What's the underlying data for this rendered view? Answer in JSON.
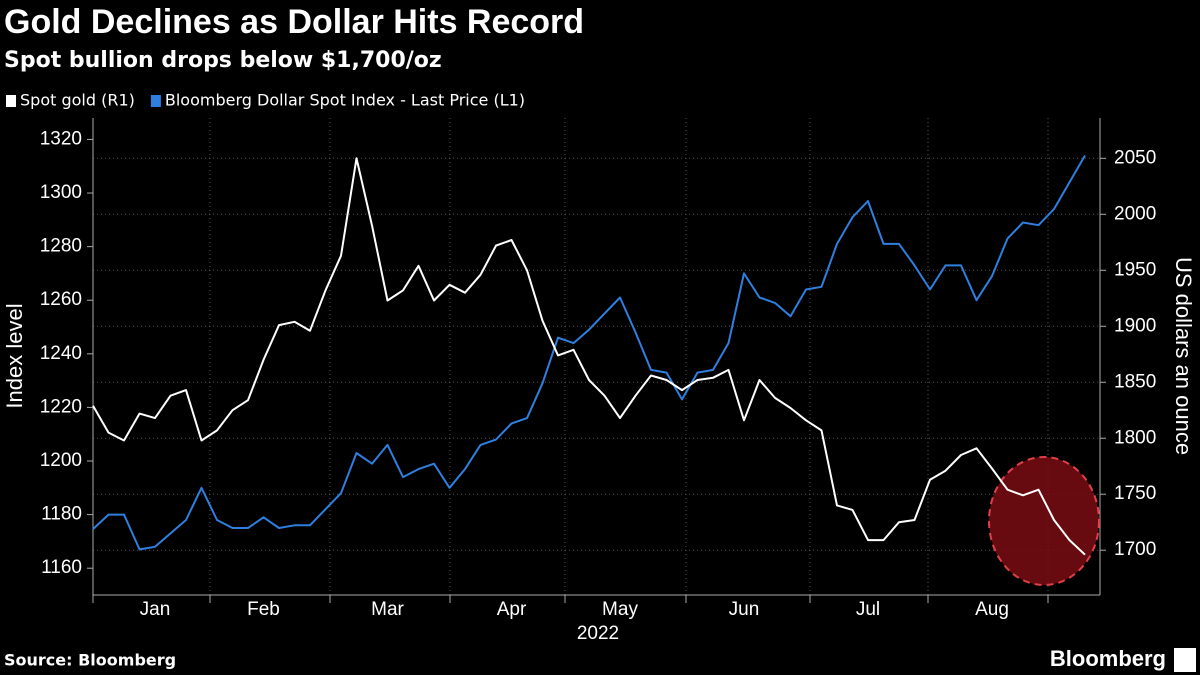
{
  "chart_data": {
    "type": "line",
    "title": "Gold Declines as Dollar Hits Record",
    "subtitle": "Spot bullion drops below $1,700/oz",
    "xlabel": "2022",
    "ylabel": "Index level",
    "y2label": "US dollars an ounce",
    "source": "Source: Bloomberg",
    "brand": "Bloomberg",
    "categories": [
      null,
      null,
      null,
      null,
      "Jan",
      null,
      null,
      null,
      null,
      null,
      null,
      "Feb",
      null,
      null,
      null,
      null,
      null,
      null,
      null,
      "Mar",
      null,
      null,
      null,
      null,
      null,
      null,
      null,
      "Apr",
      null,
      null,
      null,
      null,
      null,
      null,
      "May",
      null,
      null,
      null,
      null,
      null,
      null,
      null,
      "Jun",
      null,
      null,
      null,
      null,
      null,
      null,
      null,
      "Jul",
      null,
      null,
      null,
      null,
      null,
      null,
      null,
      "Aug",
      null,
      null,
      null,
      null,
      null,
      null
    ],
    "series": [
      {
        "name": "Spot gold (R1)",
        "color": "#ffffff",
        "axis": "y2",
        "values": [
          1829,
          1805,
          1798,
          1822,
          1818,
          1838,
          1843,
          1798,
          1807,
          1825,
          1834,
          1870,
          1901,
          1904,
          1896,
          1932,
          1963,
          2050,
          1990,
          1923,
          1932,
          1954,
          1923,
          1937,
          1930,
          1946,
          1972,
          1977,
          1950,
          1905,
          1874,
          1879,
          1852,
          1838,
          1818,
          1838,
          1856,
          1852,
          1843,
          1852,
          1854,
          1861,
          1816,
          1852,
          1836,
          1827,
          1816,
          1807,
          1740,
          1736,
          1709,
          1709,
          1725,
          1727,
          1763,
          1771,
          1785,
          1791,
          1773,
          1754,
          1749,
          1754,
          1727,
          1709,
          1696
        ]
      },
      {
        "name": "Bloomberg Dollar Spot Index - Last Price (L1)",
        "color": "#2f7fe0",
        "values": [
          1174.6,
          1180,
          1180,
          1167,
          1168,
          1173,
          1178,
          1190,
          1178,
          1175,
          1175,
          1179,
          1175,
          1176,
          1176,
          1182,
          1188,
          1203,
          1199,
          1206,
          1194,
          1197,
          1199,
          1190,
          1197,
          1206,
          1208,
          1214,
          1216,
          1229,
          1246,
          1244,
          1249,
          1255,
          1261,
          1248,
          1234,
          1233,
          1223,
          1233,
          1234,
          1244,
          1270,
          1261,
          1259,
          1254,
          1264,
          1265,
          1281,
          1291,
          1297,
          1281,
          1281,
          1273,
          1264,
          1273,
          1273,
          1260,
          1269,
          1283,
          1289,
          1288,
          1294,
          1304,
          1314
        ]
      }
    ],
    "ylim": [
      1150,
      1328
    ],
    "yticks": [
      1160,
      1180,
      1200,
      1220,
      1240,
      1260,
      1280,
      1300,
      1320
    ],
    "y2lim": [
      1660,
      2086
    ],
    "y2ticks": [
      1700,
      1750,
      1800,
      1850,
      1900,
      1950,
      2000,
      2050
    ],
    "grid": true
  }
}
